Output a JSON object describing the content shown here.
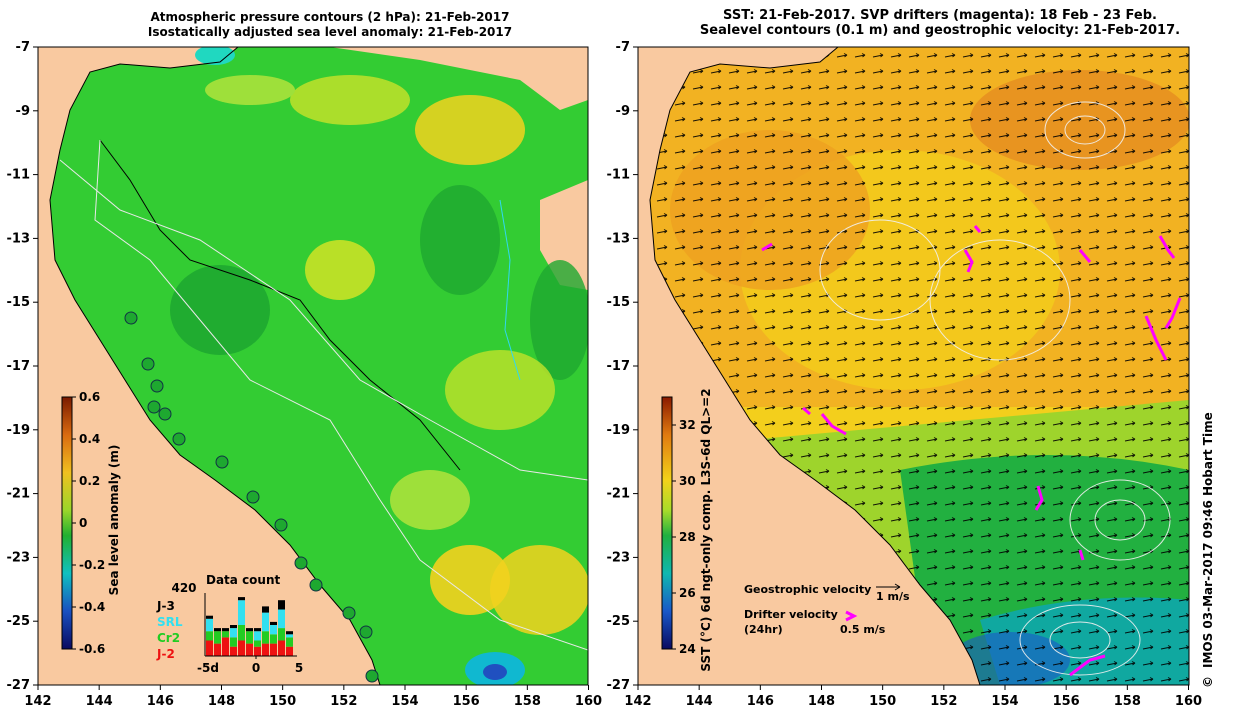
{
  "left_panel": {
    "title_line1": "Atmospheric pressure contours (2 hPa): 21-Feb-2017",
    "title_line2": "Isostatically adjusted sea level anomaly: 21-Feb-2017",
    "x_ticks": [
      "142",
      "144",
      "146",
      "148",
      "150",
      "152",
      "154",
      "156",
      "158",
      "160"
    ],
    "y_ticks": [
      "-7",
      "-9",
      "-11",
      "-13",
      "-15",
      "-17",
      "-19",
      "-21",
      "-23",
      "-25",
      "-27"
    ],
    "colorbar": {
      "label": "Sea level anomaly (m)",
      "ticks": [
        "0.6",
        "0.4",
        "0.2",
        "0",
        "-0.2",
        "-0.4",
        "-0.6"
      ],
      "range": [
        -0.6,
        0.6
      ]
    },
    "data_count": {
      "title": "Data count",
      "max_label": "420",
      "x_ticks": [
        "-5d",
        "0",
        "5"
      ],
      "legend": [
        {
          "name": "J-3",
          "color": "#000000"
        },
        {
          "name": "SRL",
          "color": "#33e0f0"
        },
        {
          "name": "Cr2",
          "color": "#22cc22"
        },
        {
          "name": "J-2",
          "color": "#ee1111"
        }
      ],
      "bars": [
        {
          "J2": 0.25,
          "Cr2": 0.15,
          "SRL": 0.2,
          "J3": 0.05
        },
        {
          "J2": 0.2,
          "Cr2": 0.2,
          "SRL": 0.0,
          "J3": 0.05
        },
        {
          "J2": 0.3,
          "Cr2": 0.1,
          "SRL": 0.0,
          "J3": 0.05
        },
        {
          "J2": 0.15,
          "Cr2": 0.15,
          "SRL": 0.15,
          "J3": 0.05
        },
        {
          "J2": 0.25,
          "Cr2": 0.25,
          "SRL": 0.4,
          "J3": 0.05
        },
        {
          "J2": 0.2,
          "Cr2": 0.2,
          "SRL": 0.0,
          "J3": 0.05
        },
        {
          "J2": 0.15,
          "Cr2": 0.1,
          "SRL": 0.15,
          "J3": 0.05
        },
        {
          "J2": 0.2,
          "Cr2": 0.2,
          "SRL": 0.3,
          "J3": 0.1
        },
        {
          "J2": 0.2,
          "Cr2": 0.15,
          "SRL": 0.15,
          "J3": 0.05
        },
        {
          "J2": 0.25,
          "Cr2": 0.2,
          "SRL": 0.3,
          "J3": 0.15
        },
        {
          "J2": 0.15,
          "Cr2": 0.15,
          "SRL": 0.05,
          "J3": 0.05
        }
      ]
    }
  },
  "right_panel": {
    "title_line1": "SST: 21-Feb-2017. SVP drifters (magenta): 18 Feb - 23 Feb.",
    "title_line2": "Sealevel contours (0.1 m) and geostrophic velocity: 21-Feb-2017.",
    "x_ticks": [
      "142",
      "144",
      "146",
      "148",
      "150",
      "152",
      "154",
      "156",
      "158",
      "160"
    ],
    "y_ticks": [
      "-7",
      "-9",
      "-11",
      "-13",
      "-15",
      "-17",
      "-19",
      "-21",
      "-23",
      "-25",
      "-27"
    ],
    "colorbar": {
      "label": "SST (°C) 6d ngt-only comp. L3S-6d QL>=2",
      "ticks": [
        "32",
        "30",
        "28",
        "26",
        "24"
      ],
      "range": [
        24,
        33
      ]
    },
    "velocity_legend": {
      "geo_label": "Geostrophic velocity",
      "geo_scale": "1 m/s",
      "drifter_label_1": "Drifter velocity",
      "drifter_label_2": "(24hr)",
      "drifter_scale": "0.5 m/s"
    },
    "credit": "IMOS 03-Mar-2017 09:46 Hobart Time",
    "copyright": "©"
  },
  "colors": {
    "land": "#f9c9a0",
    "slap_green": "#33cc33",
    "sst_orange": "#f0a020",
    "drifter": "#ff00ff"
  }
}
